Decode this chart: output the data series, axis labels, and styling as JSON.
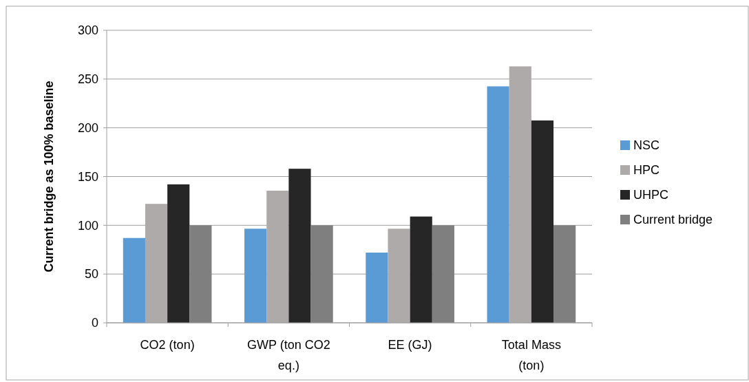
{
  "chart_data": {
    "type": "bar",
    "ylabel": "Current bridge as 100% baseline",
    "categories": [
      "CO2 (ton)",
      "GWP (ton CO2 eq.)",
      "EE (GJ)",
      "Total Mass (ton)"
    ],
    "series": [
      {
        "name": "NSC",
        "color": "#5b9bd5",
        "values": [
          87,
          96.5,
          72,
          242.5
        ]
      },
      {
        "name": "HPC",
        "color": "#aeaaaa",
        "values": [
          122,
          135.5,
          96.5,
          263
        ]
      },
      {
        "name": "UHPC",
        "color": "#262626",
        "values": [
          142,
          158,
          109,
          207.5
        ]
      },
      {
        "name": "Current bridge",
        "color": "#7f7f7f",
        "values": [
          100,
          100,
          100,
          100
        ]
      }
    ],
    "ylim": [
      0,
      300
    ],
    "yticks": [
      0,
      50,
      100,
      150,
      200,
      250,
      300
    ],
    "grid": "y",
    "legend": "right"
  }
}
